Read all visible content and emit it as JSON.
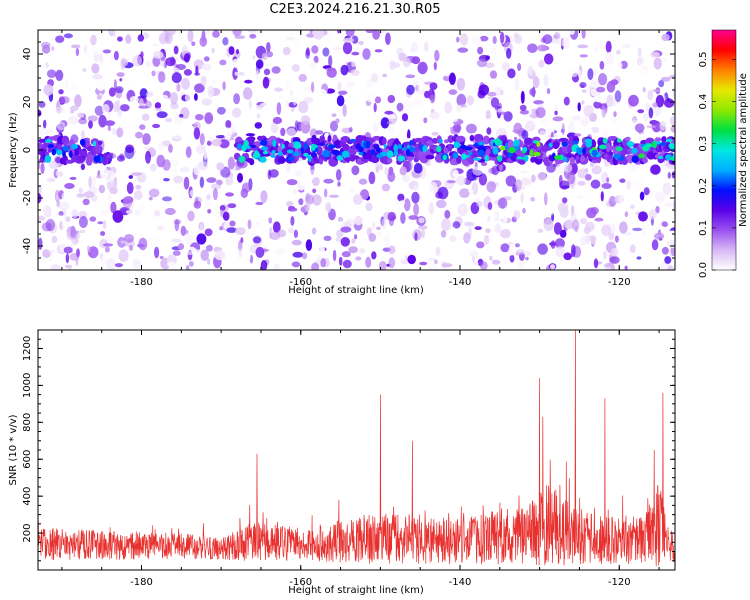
{
  "title": "C2E3.2024.216.21.30.R05",
  "chart_data": [
    {
      "type": "heatmap",
      "name": "spectrogram",
      "xlabel": "Height of straight line (km)",
      "ylabel": "Frequency (Hz)",
      "xlim": [
        -193,
        -113
      ],
      "ylim": [
        -50,
        50
      ],
      "xticks": [
        -180,
        -160,
        -140,
        -120
      ],
      "yticks": [
        -40,
        -20,
        0,
        20,
        40
      ],
      "band_center_hz": 0,
      "band_halfwidth_hz": 5,
      "band_start_km": -168,
      "colorbar": {
        "label": "Normalized spectral amplitude",
        "range": [
          0.0,
          0.57
        ],
        "ticks": [
          0.0,
          0.1,
          0.2,
          0.3,
          0.4,
          0.5
        ],
        "colors": [
          "#ffffff",
          "#d8b8f4",
          "#9a50f0",
          "#5a00e8",
          "#0010ff",
          "#00b0ff",
          "#00e8e0",
          "#00e040",
          "#90e800",
          "#e8e800",
          "#ff8000",
          "#ff0000",
          "#ff0090"
        ]
      }
    },
    {
      "type": "line",
      "name": "snr",
      "xlabel": "Height of straight line (km)",
      "ylabel": "SNR (10 * v/v)",
      "xlim": [
        -193,
        -113
      ],
      "ylim": [
        0,
        1300
      ],
      "xticks": [
        -180,
        -160,
        -140,
        -120
      ],
      "yticks": [
        200,
        400,
        600,
        800,
        1000,
        1200
      ],
      "color": "#e8302e",
      "segments": [
        {
          "x": -193,
          "base": 140,
          "amp": 90
        },
        {
          "x": -175,
          "base": 130,
          "amp": 70
        },
        {
          "x": -170,
          "base": 115,
          "amp": 60
        },
        {
          "x": -166,
          "base": 150,
          "amp": 110
        },
        {
          "x": -160,
          "base": 140,
          "amp": 90
        },
        {
          "x": -150,
          "base": 170,
          "amp": 140
        },
        {
          "x": -140,
          "base": 160,
          "amp": 130
        },
        {
          "x": -131,
          "base": 200,
          "amp": 170
        },
        {
          "x": -129,
          "base": 230,
          "amp": 240
        },
        {
          "x": -124,
          "base": 170,
          "amp": 140
        },
        {
          "x": -117,
          "base": 160,
          "amp": 130
        },
        {
          "x": -115,
          "base": 230,
          "amp": 250
        },
        {
          "x": -113,
          "base": 100,
          "amp": 60
        }
      ],
      "peaks": [
        {
          "x": -165.5,
          "y": 630
        },
        {
          "x": -150.0,
          "y": 950
        },
        {
          "x": -146.0,
          "y": 700
        },
        {
          "x": -130.0,
          "y": 1040
        },
        {
          "x": -129.6,
          "y": 830
        },
        {
          "x": -125.5,
          "y": 1300
        },
        {
          "x": -121.8,
          "y": 930
        },
        {
          "x": -114.5,
          "y": 960
        },
        {
          "x": -115.6,
          "y": 650
        }
      ]
    }
  ]
}
